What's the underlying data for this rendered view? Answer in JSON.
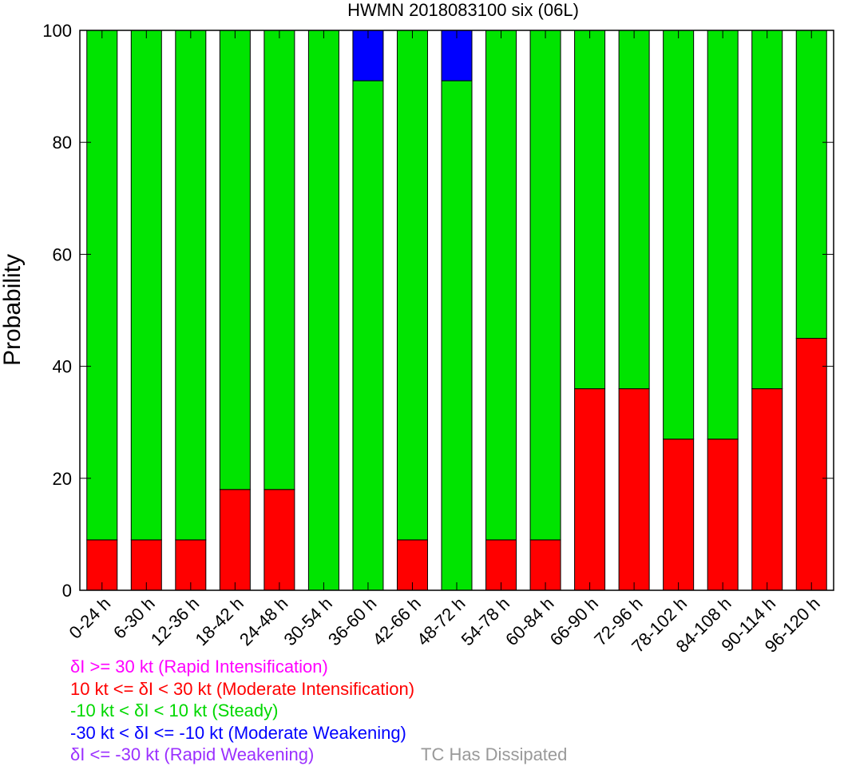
{
  "chart_data": {
    "type": "bar",
    "stacked": true,
    "title": "HWMN 2018083100 six (06L)",
    "ylabel": "Probability",
    "xlabel": "",
    "ylim": [
      0,
      100
    ],
    "yticks": [
      0,
      20,
      40,
      60,
      80,
      100
    ],
    "categories": [
      "0-24 h",
      "6-30 h",
      "12-36 h",
      "18-42 h",
      "24-48 h",
      "30-54 h",
      "36-60 h",
      "42-66 h",
      "48-72 h",
      "54-78 h",
      "60-84 h",
      "66-90 h",
      "72-96 h",
      "78-102 h",
      "84-108 h",
      "90-114 h",
      "96-120 h"
    ],
    "series": [
      {
        "name": "Rapid Intensification",
        "color": "#ff00ff",
        "values": [
          0,
          0,
          0,
          0,
          0,
          0,
          0,
          0,
          0,
          0,
          0,
          0,
          0,
          0,
          0,
          0,
          0
        ]
      },
      {
        "name": "Moderate Intensification",
        "color": "#ff0000",
        "values": [
          9,
          9,
          9,
          18,
          18,
          0,
          0,
          9,
          0,
          9,
          9,
          36,
          36,
          27,
          27,
          36,
          45
        ]
      },
      {
        "name": "Steady",
        "color": "#00e400",
        "values": [
          91,
          91,
          91,
          82,
          82,
          100,
          91,
          91,
          91,
          91,
          91,
          64,
          64,
          73,
          73,
          64,
          55
        ]
      },
      {
        "name": "Moderate Weakening",
        "color": "#0000ff",
        "values": [
          0,
          0,
          0,
          0,
          0,
          0,
          9,
          0,
          9,
          0,
          0,
          0,
          0,
          0,
          0,
          0,
          0
        ]
      },
      {
        "name": "Rapid Weakening",
        "color": "#9b30ff",
        "values": [
          0,
          0,
          0,
          0,
          0,
          0,
          0,
          0,
          0,
          0,
          0,
          0,
          0,
          0,
          0,
          0,
          0
        ]
      }
    ]
  },
  "legend": {
    "entries": [
      {
        "text": "δI >= 30 kt (Rapid Intensification)",
        "color": "#ff00ff"
      },
      {
        "text": "10 kt <= δI < 30 kt (Moderate Intensification)",
        "color": "#ff0000"
      },
      {
        "text": "-10 kt < δI < 10 kt (Steady)",
        "color": "#00d800"
      },
      {
        "text": "-30 kt < δI <= -10 kt (Moderate Weakening)",
        "color": "#0000ff"
      },
      {
        "text": "δI <= -30 kt (Rapid Weakening)",
        "color": "#9b30ff"
      }
    ],
    "dissipated": {
      "text": "TC Has Dissipated",
      "color": "#999999"
    }
  }
}
